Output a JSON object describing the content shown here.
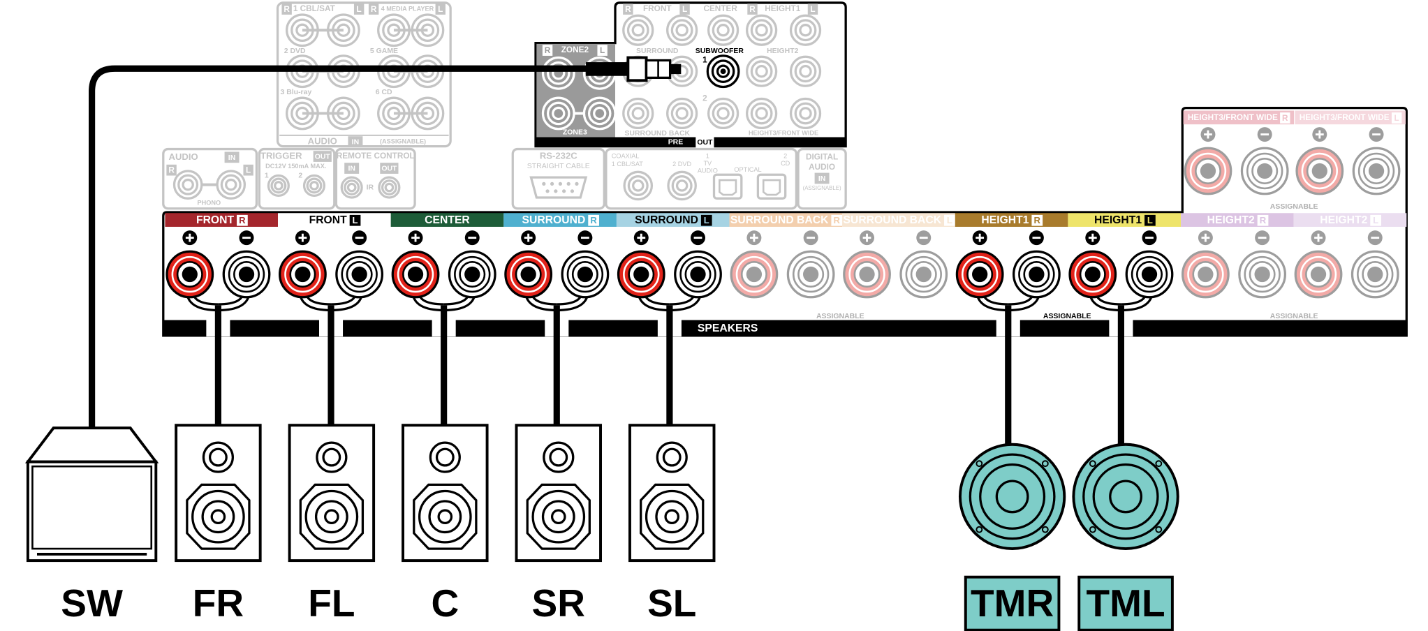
{
  "receiver": {
    "audio_inputs": {
      "jacks": [
        "1 CBL/SAT",
        "4 MEDIA PLAYER",
        "2 DVD",
        "5 GAME",
        "3 Blu-ray",
        "6 CD"
      ],
      "side_r": "R",
      "side_l": "L",
      "title": "AUDIO",
      "in": "IN",
      "note": "(ASSIGNABLE)"
    },
    "pre_out": {
      "zone2": "ZONE2",
      "zone3": "ZONE3",
      "front": "FRONT",
      "center": "CENTER",
      "height1": "HEIGHT1",
      "surround": "SURROUND",
      "subwoofer": "SUBWOOFER",
      "sub_1": "1",
      "sub_2": "2",
      "height2": "HEIGHT2",
      "surround_back": "SURROUND BACK",
      "height3": "HEIGHT3/FRONT WIDE",
      "pre": "PRE",
      "out": "OUT",
      "side_r": "R",
      "side_l": "L"
    },
    "phono": {
      "title": "AUDIO",
      "in": "IN",
      "label": "PHONO",
      "side_r": "R",
      "side_l": "L"
    },
    "trigger": {
      "title": "TRIGGER",
      "out": "OUT",
      "spec": "DC12V 150mA MAX.",
      "j1": "1",
      "j2": "2"
    },
    "remote": {
      "title": "REMOTE CONTROL",
      "in": "IN",
      "out": "OUT",
      "ir": "IR"
    },
    "rs232c": {
      "title": "RS-232C",
      "cable": "STRAIGHT CABLE"
    },
    "digital": {
      "coaxial": "COAXIAL",
      "coax_1": "1 CBL/SAT",
      "coax_2": "2 DVD",
      "opt_1": [
        "1",
        "TV",
        "AUDIO"
      ],
      "optical": "OPTICAL",
      "opt_2": [
        "2",
        "CD"
      ],
      "title": [
        "DIGITAL",
        "AUDIO"
      ],
      "in": "IN",
      "note": "(ASSIGNABLE)"
    },
    "speaker_terminals": {
      "channels": [
        {
          "name": "FRONT",
          "side": "R"
        },
        {
          "name": "FRONT",
          "side": "L"
        },
        {
          "name": "CENTER"
        },
        {
          "name": "SURROUND",
          "side": "R"
        },
        {
          "name": "SURROUND",
          "side": "L"
        },
        {
          "name": "SURROUND BACK",
          "side": "R"
        },
        {
          "name": "SURROUND BACK",
          "side": "L"
        },
        {
          "name": "HEIGHT1",
          "side": "R"
        },
        {
          "name": "HEIGHT1",
          "side": "L"
        },
        {
          "name": "HEIGHT2",
          "side": "R"
        },
        {
          "name": "HEIGHT2",
          "side": "L"
        }
      ],
      "height3": {
        "name": "HEIGHT3/FRONT WIDE",
        "sides": [
          "R",
          "L"
        ]
      },
      "speakers": "SPEAKERS",
      "assignable": [
        "ASSIGNABLE",
        "ASSIGNABLE",
        "ASSIGNABLE",
        "ASSIGNABLE"
      ]
    }
  },
  "speakers": [
    "SW",
    "FR",
    "FL",
    "C",
    "SR",
    "SL",
    "TMR",
    "TML"
  ]
}
